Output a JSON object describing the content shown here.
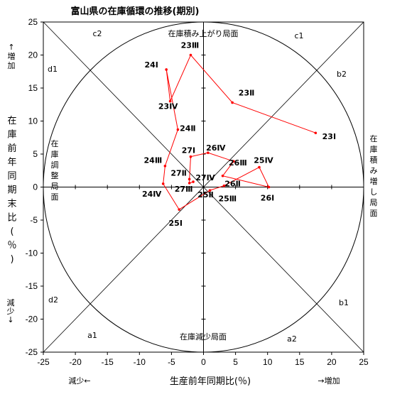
{
  "chart_data": {
    "type": "scatter",
    "title": "富山県の在庫循環の推移(期別)",
    "xlabel": "生産前年同期比(％)",
    "ylabel": "在庫前年同期末比(％)",
    "xlim": [
      -25,
      25
    ],
    "ylim": [
      -25,
      25
    ],
    "x_ticks": [
      "-25",
      "-20",
      "-15",
      "-10",
      "-5",
      "0",
      "5",
      "10",
      "15",
      "20",
      "25"
    ],
    "y_ticks": [
      "25",
      "20",
      "15",
      "10",
      "5",
      "0",
      "-5",
      "-10",
      "-15",
      "-20",
      "-25"
    ],
    "x_increase_label": "→増加",
    "x_decrease_label": "減少←",
    "y_increase_label": "↑増加",
    "y_decrease_label": "減少↓",
    "grid": false,
    "zone_labels": {
      "top": "在庫積み上がり局面",
      "right": "在庫積み増し局面",
      "bottom": "在庫減少局面",
      "left": "在庫調整局面"
    },
    "sector_labels": [
      "c1",
      "c2",
      "b2",
      "b1",
      "a2",
      "a1",
      "d1",
      "d2"
    ],
    "series": [
      {
        "color": "#ff0000",
        "points": [
          {
            "label": "23Ⅰ",
            "x": 17.5,
            "y": 8.2
          },
          {
            "label": "23Ⅱ",
            "x": 4.5,
            "y": 12.8
          },
          {
            "label": "23Ⅲ",
            "x": -2.0,
            "y": 20.0
          },
          {
            "label": "23Ⅳ",
            "x": -5.2,
            "y": 13.0
          },
          {
            "label": "24Ⅰ",
            "x": -5.8,
            "y": 17.8
          },
          {
            "label": "24Ⅱ",
            "x": -4.0,
            "y": 8.7
          },
          {
            "label": "24Ⅲ",
            "x": -6.0,
            "y": 3.2
          },
          {
            "label": "24Ⅳ",
            "x": -6.3,
            "y": 0.5
          },
          {
            "label": "25Ⅰ",
            "x": -3.8,
            "y": -3.4
          },
          {
            "label": "25Ⅱ",
            "x": 1.0,
            "y": -0.5
          },
          {
            "label": "25Ⅲ",
            "x": 3.2,
            "y": 0.2
          },
          {
            "label": "25Ⅳ",
            "x": 8.7,
            "y": 3.0
          },
          {
            "label": "26Ⅰ",
            "x": 10.2,
            "y": 0.0
          },
          {
            "label": "26Ⅱ",
            "x": 3.0,
            "y": 1.7
          },
          {
            "label": "26Ⅲ",
            "x": 4.7,
            "y": 3.9
          },
          {
            "label": "26Ⅳ",
            "x": 0.7,
            "y": 5.2
          },
          {
            "label": "27Ⅰ",
            "x": -2.0,
            "y": 4.6
          },
          {
            "label": "27Ⅱ",
            "x": -2.2,
            "y": 1.2
          },
          {
            "label": "27Ⅲ",
            "x": -2.2,
            "y": 0.6
          },
          {
            "label": "27Ⅳ",
            "x": -1.6,
            "y": 0.8
          }
        ]
      }
    ]
  }
}
